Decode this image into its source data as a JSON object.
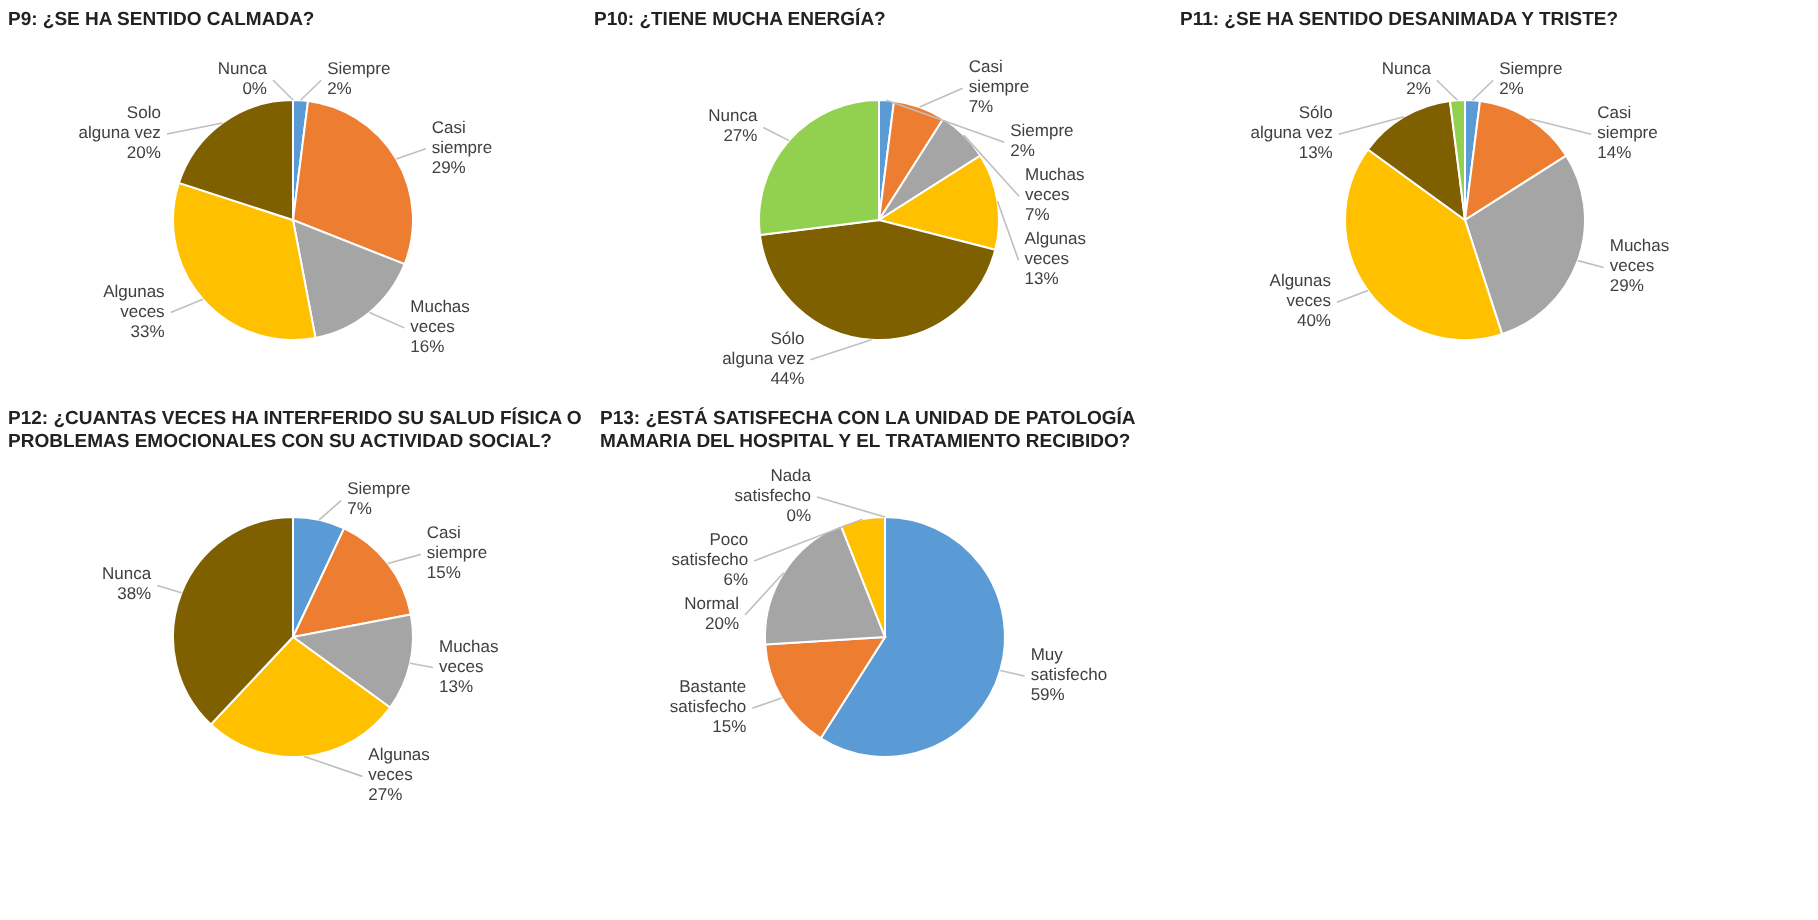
{
  "chart_data": [
    {
      "type": "pie",
      "title": "P9: ¿SE HA SENTIDO CALMADA?",
      "categories": [
        "Siempre",
        "Casi siempre",
        "Muchas veces",
        "Algunas veces",
        "Solo alguna vez",
        "Nunca"
      ],
      "values": [
        2,
        29,
        16,
        33,
        20,
        0
      ],
      "value_labels": [
        "2%",
        "29%",
        "16%",
        "33%",
        "20%",
        "0%"
      ],
      "colors": [
        "#5b9bd5",
        "#ed7d31",
        "#a5a5a5",
        "#ffc000",
        "#7f6000",
        "#92d050"
      ],
      "legend": false
    },
    {
      "type": "pie",
      "title": "P10: ¿TIENE MUCHA ENERGÍA?",
      "categories": [
        "Siempre",
        "Casi siempre",
        "Muchas veces",
        "Algunas veces",
        "Sólo alguna vez",
        "Nunca"
      ],
      "values": [
        2,
        7,
        7,
        13,
        44,
        27
      ],
      "value_labels": [
        "2%",
        "7%",
        "7%",
        "13%",
        "44%",
        "27%"
      ],
      "colors": [
        "#5b9bd5",
        "#ed7d31",
        "#a5a5a5",
        "#ffc000",
        "#7f6000",
        "#92d050"
      ],
      "legend": false
    },
    {
      "type": "pie",
      "title": "P11: ¿SE HA SENTIDO DESANIMADA Y TRISTE?",
      "categories": [
        "Siempre",
        "Casi siempre",
        "Muchas veces",
        "Algunas veces",
        "Sólo alguna vez",
        "Nunca"
      ],
      "values": [
        2,
        14,
        29,
        40,
        13,
        2
      ],
      "value_labels": [
        "2%",
        "14%",
        "29%",
        "40%",
        "13%",
        "2%"
      ],
      "colors": [
        "#5b9bd5",
        "#ed7d31",
        "#a5a5a5",
        "#ffc000",
        "#7f6000",
        "#92d050"
      ],
      "legend": false
    },
    {
      "type": "pie",
      "title": "P12: ¿CUANTAS VECES HA INTERFERIDO SU SALUD FÍSICA O PROBLEMAS EMOCIONALES CON SU ACTIVIDAD SOCIAL?",
      "categories": [
        "Siempre",
        "Casi siempre",
        "Muchas veces",
        "Algunas veces",
        "Nunca"
      ],
      "values": [
        7,
        15,
        13,
        27,
        38
      ],
      "value_labels": [
        "7%",
        "15%",
        "13%",
        "27%",
        "38%"
      ],
      "colors": [
        "#5b9bd5",
        "#ed7d31",
        "#a5a5a5",
        "#ffc000",
        "#7f6000"
      ],
      "legend": false
    },
    {
      "type": "pie",
      "title": "P13: ¿ESTÁ SATISFECHA CON LA UNIDAD DE PATOLOGÍA MAMARIA DEL HOSPITAL Y EL TRATAMIENTO RECIBIDO?",
      "categories": [
        "Muy satisfecho",
        "Bastante satisfecho",
        "Normal",
        "Poco satisfecho",
        "Nada satisfecho"
      ],
      "values": [
        59,
        15,
        20,
        6,
        0
      ],
      "value_labels": [
        "59%",
        "15%",
        "20%",
        "6%",
        "0%"
      ],
      "colors": [
        "#5b9bd5",
        "#ed7d31",
        "#a5a5a5",
        "#ffc000",
        "#70ad47"
      ],
      "legend": false
    }
  ]
}
